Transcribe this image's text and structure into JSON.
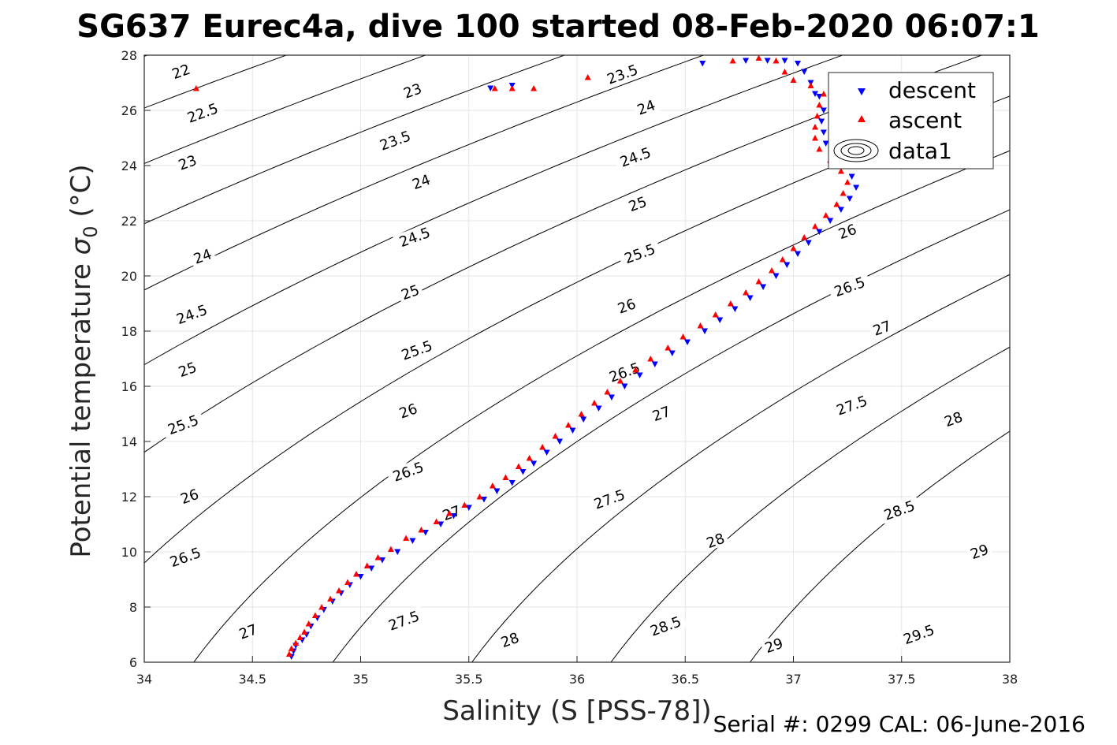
{
  "title": "SG637 Eurec4a, dive 100 started 08-Feb-2020 06:07:1",
  "footer": "Serial #: 0299 CAL: 06-June-2016",
  "colors": {
    "descent": "#0000ff",
    "ascent": "#ff0000",
    "contour": "#000000",
    "grid": "#e6e6e6"
  },
  "chart_data": {
    "type": "scatter",
    "title": "SG637 Eurec4a, dive 100 started 08-Feb-2020 06:07:1",
    "xlabel": "Salinity (S [PSS-78])",
    "ylabel_main": "Potential temperature ",
    "ylabel_sigma": "σ",
    "ylabel_sub": "0",
    "ylabel_unit": " (°C)",
    "xlim": [
      34,
      38
    ],
    "ylim": [
      6,
      28
    ],
    "xticks": [
      34,
      34.5,
      35,
      35.5,
      36,
      36.5,
      37,
      37.5,
      38
    ],
    "yticks": [
      6,
      8,
      10,
      12,
      14,
      16,
      18,
      20,
      22,
      24,
      26,
      28
    ],
    "grid": true,
    "legend_position": "top-right",
    "legend": [
      "descent",
      "ascent",
      "data1"
    ],
    "contours": {
      "levels": [
        22,
        22.5,
        23,
        23.5,
        24,
        24.5,
        25,
        25.5,
        26,
        26.5,
        27,
        27.5,
        28,
        28.5,
        29,
        29.5
      ],
      "labels": [
        {
          "text": "22",
          "s": 34.17,
          "t": 27.4
        },
        {
          "text": "22.5",
          "s": 34.27,
          "t": 25.9
        },
        {
          "text": "23",
          "s": 34.2,
          "t": 24.1
        },
        {
          "text": "24",
          "s": 34.27,
          "t": 20.7
        },
        {
          "text": "24.5",
          "s": 34.22,
          "t": 18.6
        },
        {
          "text": "25",
          "s": 34.2,
          "t": 16.6
        },
        {
          "text": "25.5",
          "s": 34.18,
          "t": 14.6
        },
        {
          "text": "26",
          "s": 34.21,
          "t": 12.0
        },
        {
          "text": "26.5",
          "s": 34.19,
          "t": 9.8
        },
        {
          "text": "27",
          "s": 34.48,
          "t": 7.1
        },
        {
          "text": "23",
          "s": 35.24,
          "t": 26.7
        },
        {
          "text": "23.5",
          "s": 35.16,
          "t": 24.9
        },
        {
          "text": "24",
          "s": 35.28,
          "t": 23.4
        },
        {
          "text": "24.5",
          "s": 35.25,
          "t": 21.4
        },
        {
          "text": "25",
          "s": 35.23,
          "t": 19.4
        },
        {
          "text": "25.5",
          "s": 35.26,
          "t": 17.3
        },
        {
          "text": "26",
          "s": 35.22,
          "t": 15.1
        },
        {
          "text": "26.5",
          "s": 35.22,
          "t": 12.9
        },
        {
          "text": "27",
          "s": 35.42,
          "t": 11.4
        },
        {
          "text": "27.5",
          "s": 35.2,
          "t": 7.5
        },
        {
          "text": "28",
          "s": 35.69,
          "t": 6.8
        },
        {
          "text": "23.5",
          "s": 36.21,
          "t": 27.3
        },
        {
          "text": "24",
          "s": 36.32,
          "t": 26.1
        },
        {
          "text": "24.5",
          "s": 36.27,
          "t": 24.3
        },
        {
          "text": "25",
          "s": 36.28,
          "t": 22.6
        },
        {
          "text": "25.5",
          "s": 36.29,
          "t": 20.8
        },
        {
          "text": "26",
          "s": 36.23,
          "t": 18.9
        },
        {
          "text": "26.5",
          "s": 36.22,
          "t": 16.5
        },
        {
          "text": "27",
          "s": 36.39,
          "t": 15.0
        },
        {
          "text": "27.5",
          "s": 36.15,
          "t": 11.9
        },
        {
          "text": "28",
          "s": 36.64,
          "t": 10.4
        },
        {
          "text": "28.5",
          "s": 36.41,
          "t": 7.3
        },
        {
          "text": "29",
          "s": 36.91,
          "t": 6.6
        },
        {
          "text": "26",
          "s": 37.25,
          "t": 21.6
        },
        {
          "text": "26.5",
          "s": 37.26,
          "t": 19.6
        },
        {
          "text": "27",
          "s": 37.41,
          "t": 18.1
        },
        {
          "text": "27.5",
          "s": 37.27,
          "t": 15.3
        },
        {
          "text": "28",
          "s": 37.74,
          "t": 14.8
        },
        {
          "text": "28.5",
          "s": 37.49,
          "t": 11.5
        },
        {
          "text": "29",
          "s": 37.86,
          "t": 10.0
        },
        {
          "text": "29.5",
          "s": 37.58,
          "t": 7.0
        }
      ]
    },
    "series": [
      {
        "name": "descent",
        "marker": "down-triangle",
        "color": "#0000ff",
        "points": [
          [
            34.68,
            6.2
          ],
          [
            34.69,
            6.4
          ],
          [
            34.7,
            6.6
          ],
          [
            34.73,
            6.8
          ],
          [
            34.75,
            7.0
          ],
          [
            34.77,
            7.3
          ],
          [
            34.8,
            7.6
          ],
          [
            34.83,
            7.9
          ],
          [
            34.87,
            8.2
          ],
          [
            34.91,
            8.5
          ],
          [
            34.95,
            8.8
          ],
          [
            35.0,
            9.1
          ],
          [
            35.05,
            9.4
          ],
          [
            35.1,
            9.7
          ],
          [
            35.17,
            10.0
          ],
          [
            35.24,
            10.4
          ],
          [
            35.3,
            10.7
          ],
          [
            35.37,
            11.0
          ],
          [
            35.43,
            11.3
          ],
          [
            35.5,
            11.6
          ],
          [
            35.57,
            11.9
          ],
          [
            35.63,
            12.2
          ],
          [
            35.7,
            12.5
          ],
          [
            35.75,
            12.9
          ],
          [
            35.8,
            13.2
          ],
          [
            35.86,
            13.6
          ],
          [
            35.92,
            14.0
          ],
          [
            35.98,
            14.4
          ],
          [
            36.03,
            14.8
          ],
          [
            36.1,
            15.2
          ],
          [
            36.16,
            15.6
          ],
          [
            36.22,
            16.0
          ],
          [
            36.29,
            16.4
          ],
          [
            36.36,
            16.8
          ],
          [
            36.44,
            17.2
          ],
          [
            36.51,
            17.6
          ],
          [
            36.59,
            18.0
          ],
          [
            36.66,
            18.4
          ],
          [
            36.73,
            18.8
          ],
          [
            36.8,
            19.2
          ],
          [
            36.86,
            19.6
          ],
          [
            36.92,
            20.0
          ],
          [
            36.97,
            20.4
          ],
          [
            37.02,
            20.8
          ],
          [
            37.07,
            21.2
          ],
          [
            37.12,
            21.6
          ],
          [
            37.17,
            22.0
          ],
          [
            37.22,
            22.4
          ],
          [
            37.26,
            22.8
          ],
          [
            37.29,
            23.2
          ],
          [
            37.27,
            23.6
          ],
          [
            37.22,
            24.0
          ],
          [
            37.18,
            24.4
          ],
          [
            37.15,
            24.8
          ],
          [
            37.14,
            25.2
          ],
          [
            37.13,
            25.6
          ],
          [
            37.14,
            26.0
          ],
          [
            37.12,
            26.5
          ],
          [
            37.08,
            27.0
          ],
          [
            37.05,
            27.4
          ],
          [
            37.02,
            27.7
          ],
          [
            36.96,
            27.8
          ],
          [
            36.88,
            27.8
          ],
          [
            36.78,
            27.8
          ],
          [
            36.58,
            27.7
          ],
          [
            35.7,
            26.9
          ],
          [
            35.6,
            26.8
          ],
          [
            37.1,
            26.6
          ]
        ]
      },
      {
        "name": "ascent",
        "marker": "up-triangle",
        "color": "#ff0000",
        "points": [
          [
            34.67,
            6.3
          ],
          [
            34.68,
            6.5
          ],
          [
            34.7,
            6.7
          ],
          [
            34.72,
            6.9
          ],
          [
            34.74,
            7.1
          ],
          [
            34.76,
            7.4
          ],
          [
            34.79,
            7.7
          ],
          [
            34.82,
            8.0
          ],
          [
            34.86,
            8.3
          ],
          [
            34.9,
            8.6
          ],
          [
            34.94,
            8.9
          ],
          [
            34.98,
            9.2
          ],
          [
            35.03,
            9.5
          ],
          [
            35.08,
            9.8
          ],
          [
            35.14,
            10.1
          ],
          [
            35.21,
            10.5
          ],
          [
            35.28,
            10.8
          ],
          [
            35.35,
            11.1
          ],
          [
            35.41,
            11.4
          ],
          [
            35.48,
            11.7
          ],
          [
            35.55,
            12.0
          ],
          [
            35.61,
            12.4
          ],
          [
            35.67,
            12.7
          ],
          [
            35.73,
            13.1
          ],
          [
            35.78,
            13.4
          ],
          [
            35.84,
            13.8
          ],
          [
            35.9,
            14.2
          ],
          [
            35.96,
            14.6
          ],
          [
            36.02,
            15.0
          ],
          [
            36.08,
            15.4
          ],
          [
            36.14,
            15.8
          ],
          [
            36.2,
            16.2
          ],
          [
            36.27,
            16.6
          ],
          [
            36.34,
            17.0
          ],
          [
            36.42,
            17.4
          ],
          [
            36.49,
            17.8
          ],
          [
            36.57,
            18.2
          ],
          [
            36.64,
            18.6
          ],
          [
            36.71,
            19.0
          ],
          [
            36.78,
            19.4
          ],
          [
            36.84,
            19.8
          ],
          [
            36.9,
            20.2
          ],
          [
            36.95,
            20.6
          ],
          [
            37.0,
            21.0
          ],
          [
            37.05,
            21.4
          ],
          [
            37.1,
            21.8
          ],
          [
            37.15,
            22.2
          ],
          [
            37.2,
            22.6
          ],
          [
            37.23,
            23.0
          ],
          [
            37.25,
            23.4
          ],
          [
            37.22,
            23.8
          ],
          [
            37.17,
            24.2
          ],
          [
            37.12,
            24.6
          ],
          [
            37.1,
            25.0
          ],
          [
            37.1,
            25.4
          ],
          [
            37.11,
            25.8
          ],
          [
            37.12,
            26.2
          ],
          [
            37.14,
            26.6
          ],
          [
            37.08,
            26.9
          ],
          [
            37.0,
            27.1
          ],
          [
            36.96,
            27.4
          ],
          [
            36.92,
            27.8
          ],
          [
            36.84,
            27.9
          ],
          [
            36.72,
            27.8
          ],
          [
            36.05,
            27.2
          ],
          [
            35.8,
            26.8
          ],
          [
            35.7,
            26.8
          ],
          [
            35.62,
            26.8
          ],
          [
            34.24,
            26.8
          ]
        ]
      }
    ]
  }
}
